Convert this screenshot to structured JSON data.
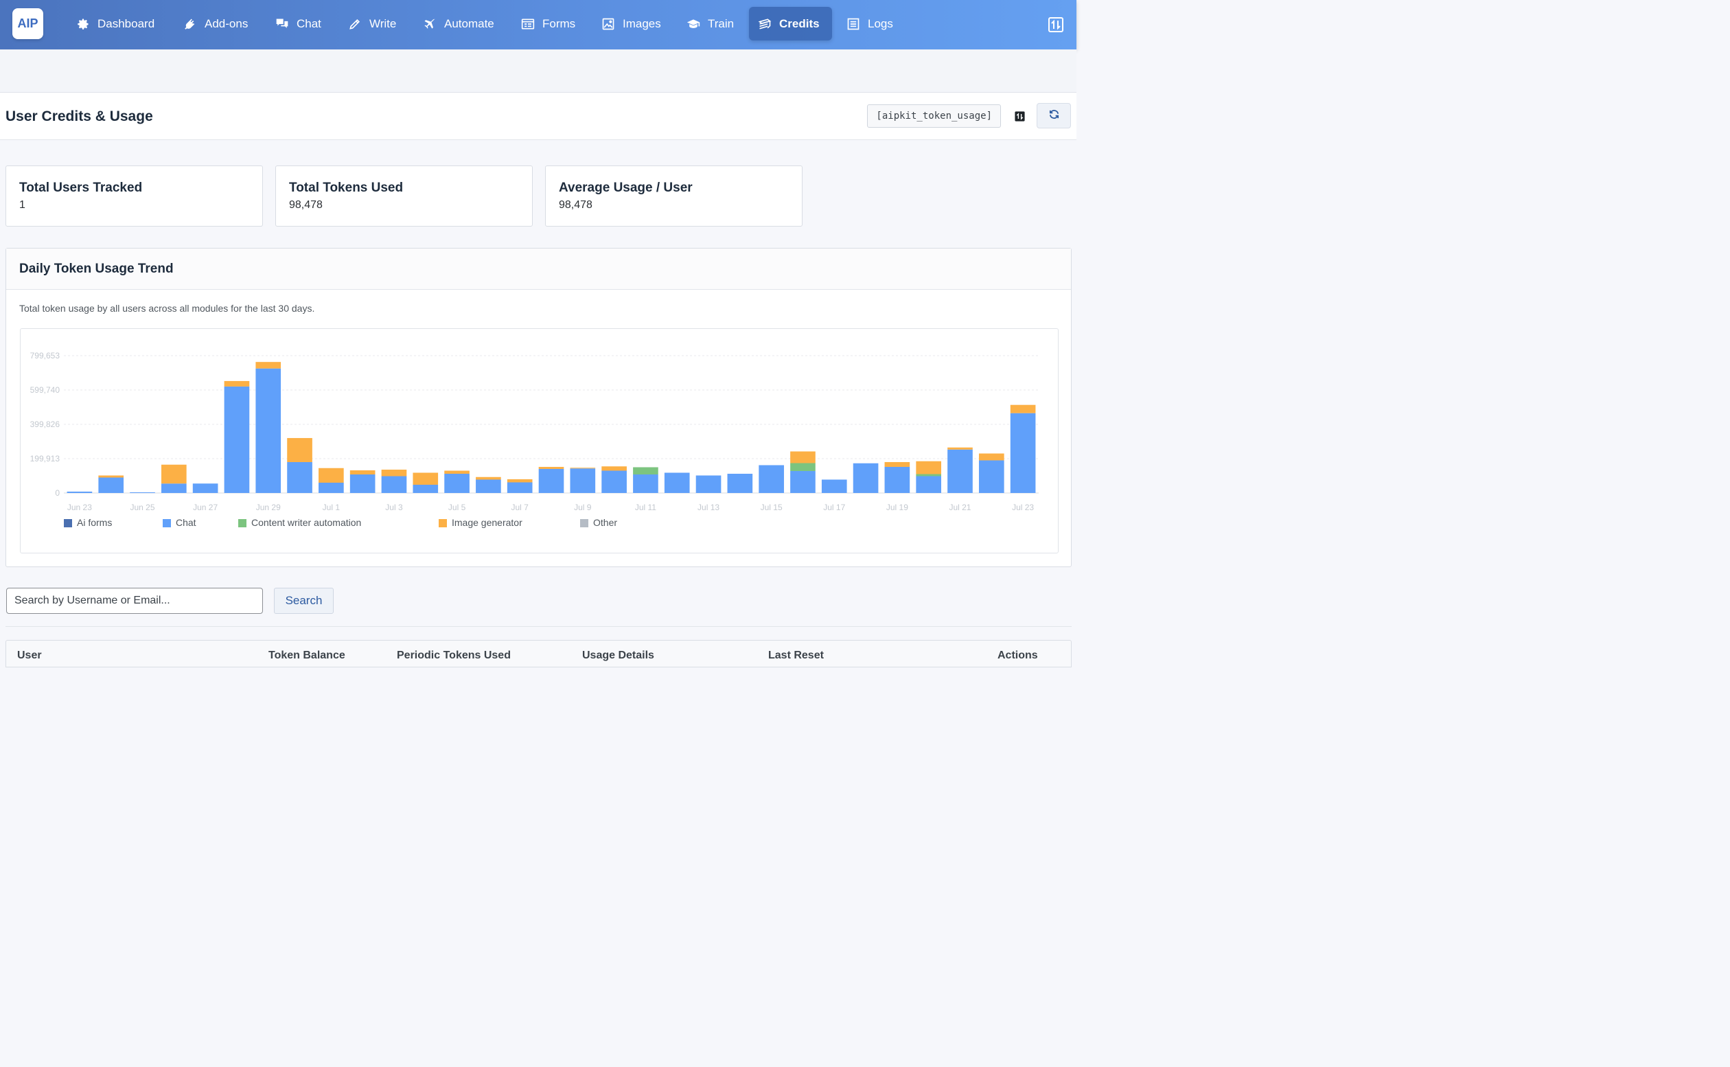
{
  "nav": {
    "logo": "AIP",
    "items": [
      {
        "label": "Dashboard",
        "icon": "gear-icon"
      },
      {
        "label": "Add-ons",
        "icon": "plug-icon"
      },
      {
        "label": "Chat",
        "icon": "chat-bubbles-icon"
      },
      {
        "label": "Write",
        "icon": "pencil-icon"
      },
      {
        "label": "Automate",
        "icon": "airplane-icon"
      },
      {
        "label": "Forms",
        "icon": "form-icon"
      },
      {
        "label": "Images",
        "icon": "image-icon"
      },
      {
        "label": "Train",
        "icon": "graduation-cap-icon"
      },
      {
        "label": "Credits",
        "icon": "money-stack-icon",
        "active": true
      },
      {
        "label": "Logs",
        "icon": "list-icon"
      }
    ]
  },
  "header": {
    "title": "User Credits & Usage",
    "shortcode": "[aipkit_token_usage]"
  },
  "stats": [
    {
      "title": "Total Users Tracked",
      "value": "1"
    },
    {
      "title": "Total Tokens Used",
      "value": "98,478"
    },
    {
      "title": "Average Usage / User",
      "value": "98,478"
    }
  ],
  "trend": {
    "title": "Daily Token Usage Trend",
    "description": "Total token usage by all users across all modules for the last 30 days."
  },
  "chart_data": {
    "type": "bar",
    "stacked": true,
    "categories": [
      "Jun 23",
      "Jun 24",
      "Jun 25",
      "Jun 26",
      "Jun 27",
      "Jun 28",
      "Jun 29",
      "Jun 30",
      "Jul 1",
      "Jul 2",
      "Jul 3",
      "Jul 4",
      "Jul 5",
      "Jul 6",
      "Jul 7",
      "Jul 8",
      "Jul 9",
      "Jul 10",
      "Jul 11",
      "Jul 12",
      "Jul 13",
      "Jul 14",
      "Jul 15",
      "Jul 16",
      "Jul 17",
      "Jul 18",
      "Jul 19",
      "Jul 20",
      "Jul 21",
      "Jul 22",
      "Jul 23"
    ],
    "tick_labels": [
      "Jun 23",
      "Jun 25",
      "Jun 27",
      "Jun 29",
      "Jul 1",
      "Jul 3",
      "Jul 5",
      "Jul 7",
      "Jul 9",
      "Jul 11",
      "Jul 13",
      "Jul 15",
      "Jul 17",
      "Jul 19",
      "Jul 21",
      "Jul 23"
    ],
    "y_ticks": [
      0,
      199913,
      399826,
      599740,
      799653
    ],
    "y_tick_labels": [
      "0",
      "199,913",
      "399,826",
      "599,740",
      "799,653"
    ],
    "ylim": [
      0,
      799653
    ],
    "grid": true,
    "legend_position": "bottom-left",
    "series": [
      {
        "name": "Ai forms",
        "color": "#4a6fb0",
        "values": [
          0,
          0,
          0,
          0,
          0,
          0,
          0,
          0,
          0,
          0,
          0,
          0,
          0,
          0,
          0,
          0,
          0,
          0,
          0,
          0,
          0,
          0,
          0,
          0,
          0,
          0,
          0,
          0,
          0,
          0,
          0
        ]
      },
      {
        "name": "Chat",
        "color": "#60a0fa",
        "values": [
          8000,
          90000,
          4000,
          55000,
          55000,
          620000,
          725000,
          180000,
          60000,
          108000,
          98000,
          48000,
          112000,
          78000,
          62000,
          140000,
          143000,
          130000,
          108000,
          118000,
          102000,
          112000,
          162000,
          128000,
          78000,
          173000,
          152000,
          98000,
          253000,
          190000,
          465000
        ]
      },
      {
        "name": "Content writer automation",
        "color": "#7cc47f",
        "values": [
          0,
          0,
          0,
          0,
          0,
          0,
          0,
          0,
          0,
          0,
          0,
          0,
          0,
          0,
          0,
          0,
          0,
          0,
          42000,
          0,
          0,
          0,
          0,
          46000,
          0,
          0,
          0,
          12000,
          0,
          0,
          0
        ]
      },
      {
        "name": "Image generator",
        "color": "#fcb045",
        "values": [
          0,
          12000,
          0,
          110000,
          0,
          32000,
          38000,
          140000,
          85000,
          24000,
          38000,
          70000,
          18000,
          15000,
          18000,
          12000,
          4000,
          25000,
          0,
          0,
          0,
          0,
          0,
          68000,
          0,
          0,
          28000,
          75000,
          12000,
          40000,
          48000
        ]
      },
      {
        "name": "Other",
        "color": "#b5bcc5",
        "values": [
          0,
          0,
          0,
          0,
          0,
          0,
          0,
          0,
          0,
          0,
          0,
          0,
          0,
          0,
          0,
          0,
          0,
          0,
          0,
          0,
          0,
          0,
          0,
          0,
          0,
          0,
          0,
          0,
          0,
          0,
          0
        ]
      }
    ]
  },
  "search": {
    "placeholder": "Search by Username or Email...",
    "button": "Search"
  },
  "table": {
    "columns": [
      "User",
      "Token Balance",
      "Periodic Tokens Used",
      "Usage Details",
      "Last Reset",
      "Actions"
    ]
  }
}
